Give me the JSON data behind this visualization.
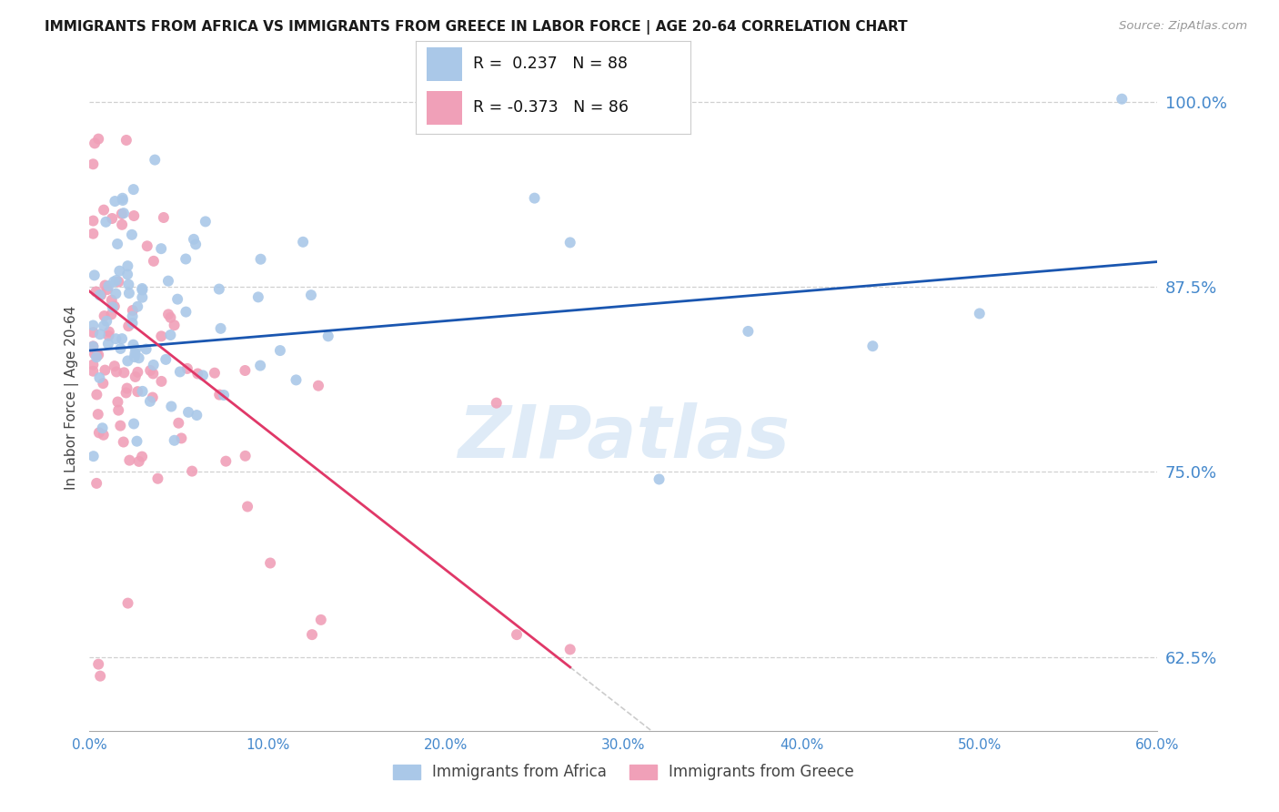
{
  "title": "IMMIGRANTS FROM AFRICA VS IMMIGRANTS FROM GREECE IN LABOR FORCE | AGE 20-64 CORRELATION CHART",
  "source": "Source: ZipAtlas.com",
  "xlabel_africa": "Immigrants from Africa",
  "xlabel_greece": "Immigrants from Greece",
  "ylabel": "In Labor Force | Age 20-64",
  "r_africa": 0.237,
  "n_africa": 88,
  "r_greece": -0.373,
  "n_greece": 86,
  "xlim": [
    0.0,
    0.6
  ],
  "ylim": [
    0.575,
    1.025
  ],
  "yticks": [
    0.625,
    0.75,
    0.875,
    1.0
  ],
  "ytick_labels": [
    "62.5%",
    "75.0%",
    "87.5%",
    "100.0%"
  ],
  "xticks": [
    0.0,
    0.1,
    0.2,
    0.3,
    0.4,
    0.5,
    0.6
  ],
  "xtick_labels": [
    "0.0%",
    "10.0%",
    "20.0%",
    "30.0%",
    "40.0%",
    "50.0%",
    "60.0%"
  ],
  "color_africa": "#aac8e8",
  "color_greece": "#f0a0b8",
  "color_line_africa": "#1a56b0",
  "color_line_greece": "#e03868",
  "color_axis_tick": "#4488cc",
  "grid_color": "#d0d0d0",
  "watermark": "ZIPatlas",
  "africa_line_x": [
    0.0,
    0.6
  ],
  "africa_line_y": [
    0.832,
    0.892
  ],
  "greece_line_x": [
    0.0,
    0.27
  ],
  "greece_line_y": [
    0.872,
    0.618
  ]
}
